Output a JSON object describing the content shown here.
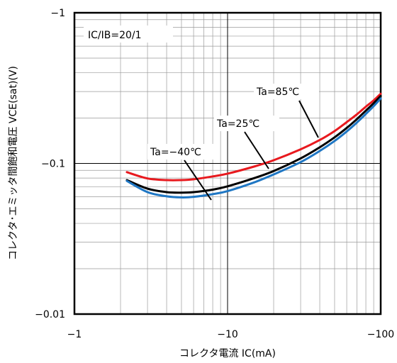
{
  "chart_data": {
    "type": "line",
    "xlabel": "コレクタ電流  IC(mA)",
    "ylabel": "コレクタ･エミッタ間飽和電圧 VCE(sat)(V)",
    "x_scale": "log",
    "y_scale": "log",
    "xlim": [
      -1,
      -100
    ],
    "ylim": [
      -0.01,
      -1
    ],
    "x_ticks": [
      -1,
      -10,
      -100
    ],
    "x_tick_labels": [
      "−1",
      "−10",
      "−100"
    ],
    "y_ticks": [
      -0.01,
      -0.1,
      -1
    ],
    "y_tick_labels": [
      "−0.01",
      "−0.1",
      "−1"
    ],
    "grid": true,
    "condition_label": "IC/IB=20/1",
    "series": [
      {
        "name": "Ta=85℃",
        "color": "#e8191e",
        "x": [
          -2.2,
          -3,
          -4,
          -5,
          -6,
          -8,
          -10,
          -15,
          -20,
          -30,
          -40,
          -50,
          -60,
          -70,
          -80,
          -90,
          -100
        ],
        "y": [
          -0.0875,
          -0.0795,
          -0.0775,
          -0.0775,
          -0.0785,
          -0.082,
          -0.0855,
          -0.0955,
          -0.105,
          -0.124,
          -0.143,
          -0.164,
          -0.188,
          -0.212,
          -0.238,
          -0.262,
          -0.29
        ]
      },
      {
        "name": "Ta=25℃",
        "color": "#000000",
        "x": [
          -2.2,
          -3,
          -4,
          -5,
          -6,
          -8,
          -10,
          -15,
          -20,
          -30,
          -40,
          -50,
          -60,
          -70,
          -80,
          -90,
          -100
        ],
        "y": [
          -0.0775,
          -0.068,
          -0.0645,
          -0.064,
          -0.0645,
          -0.067,
          -0.0705,
          -0.08,
          -0.089,
          -0.108,
          -0.128,
          -0.149,
          -0.172,
          -0.197,
          -0.224,
          -0.251,
          -0.28
        ]
      },
      {
        "name": "Ta=−40℃",
        "color": "#1f77c4",
        "x": [
          -2.2,
          -3,
          -4,
          -5,
          -6,
          -8,
          -10,
          -15,
          -20,
          -30,
          -40,
          -50,
          -60,
          -70,
          -80,
          -90,
          -100
        ],
        "y": [
          -0.0765,
          -0.0645,
          -0.0605,
          -0.0595,
          -0.06,
          -0.0625,
          -0.0655,
          -0.075,
          -0.0845,
          -0.102,
          -0.121,
          -0.141,
          -0.163,
          -0.187,
          -0.213,
          -0.24,
          -0.27
        ]
      }
    ]
  }
}
